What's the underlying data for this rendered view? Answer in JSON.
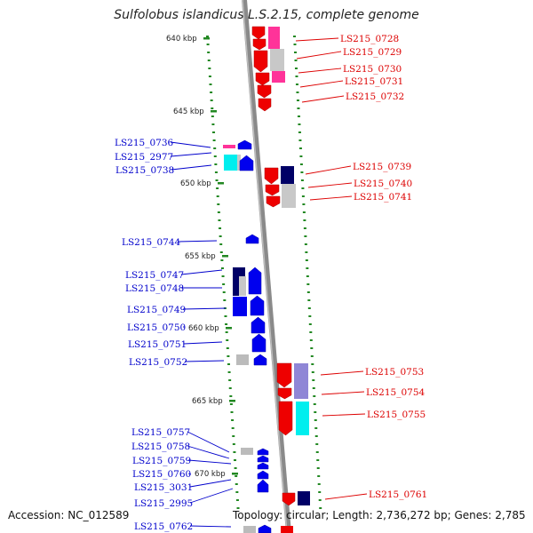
{
  "title": "Sulfolobus islandicus L.S.2.15, complete genome",
  "footer": {
    "accession": "Accession: NC_012589",
    "summary": "Topology: circular; Length: 2,736,272 bp; Genes: 2,785"
  },
  "colors": {
    "forward_strand": "#ee0000",
    "reverse_strand": "#0000ee",
    "backbone": "#888888",
    "tick": "#228822",
    "highlight_pink": "#ff3399",
    "highlight_cyan": "#00eeee",
    "highlight_navy": "#000066"
  },
  "scale": {
    "ticks": [
      "640 kbp",
      "645 kbp",
      "650 kbp",
      "655 kbp",
      "660 kbp",
      "665 kbp",
      "670 kbp"
    ]
  },
  "genes": {
    "forward": [
      "LS215_0728",
      "LS215_0729",
      "LS215_0730",
      "LS215_0731",
      "LS215_0732",
      "LS215_0739",
      "LS215_0740",
      "LS215_0741",
      "LS215_0753",
      "LS215_0754",
      "LS215_0755",
      "LS215_0761"
    ],
    "reverse": [
      "LS215_0736",
      "LS215_2977",
      "LS215_0738",
      "LS215_0744",
      "LS215_0747",
      "LS215_0748",
      "LS215_0749",
      "LS215_0750",
      "LS215_0751",
      "LS215_0752",
      "LS215_0757",
      "LS215_0758",
      "LS215_0759",
      "LS215_0760",
      "LS215_3031",
      "LS215_2995",
      "LS215_0762"
    ]
  }
}
